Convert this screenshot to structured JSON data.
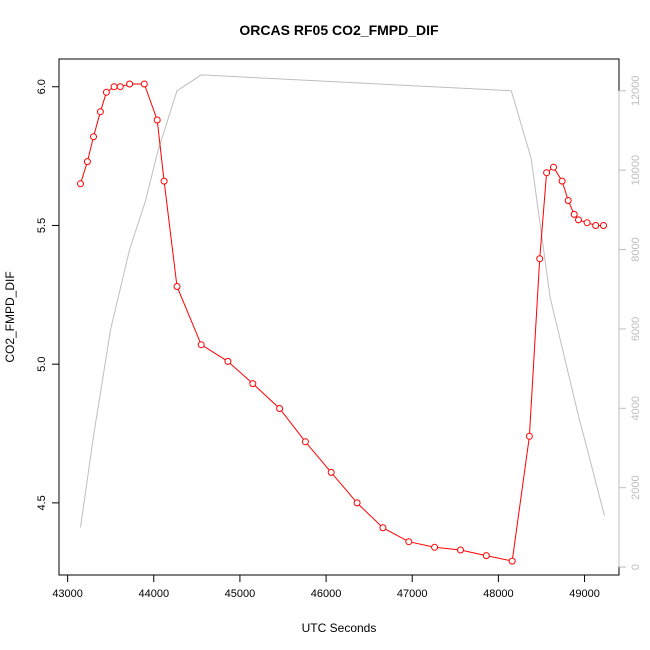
{
  "chart_data": {
    "type": "line",
    "title": "ORCAS RF05 CO2_FMPD_DIF",
    "xlabel": "UTC Seconds",
    "ylabel": "CO2_FMPD_DIF",
    "xlim": [
      42900,
      49400
    ],
    "ylim": [
      4.24,
      6.1
    ],
    "y2lim": [
      -200,
      12800
    ],
    "x_ticks": [
      43000,
      44000,
      45000,
      46000,
      47000,
      48000,
      49000
    ],
    "y_ticks": [
      4.5,
      5.0,
      5.5,
      6.0
    ],
    "y2_ticks": [
      0,
      2000,
      4000,
      6000,
      8000,
      10000,
      12000
    ],
    "grid": false,
    "series": [
      {
        "color": "#ff0000",
        "marker": "open-circle",
        "x": [
          43150,
          43230,
          43300,
          43380,
          43450,
          43540,
          43610,
          43720,
          43890,
          44040,
          44120,
          44270,
          44550,
          44860,
          45150,
          45460,
          45760,
          46060,
          46360,
          46660,
          46960,
          47260,
          47560,
          47860,
          48160,
          48360,
          48480,
          48560,
          48640,
          48740,
          48810,
          48880,
          48930,
          49030,
          49130,
          49220
        ],
        "y": [
          5.65,
          5.73,
          5.82,
          5.91,
          5.98,
          6.0,
          6.0,
          6.01,
          6.01,
          5.88,
          5.66,
          5.28,
          5.07,
          5.01,
          4.93,
          4.84,
          4.72,
          4.61,
          4.5,
          4.41,
          4.36,
          4.34,
          4.33,
          4.31,
          4.29,
          4.74,
          5.38,
          5.69,
          5.71,
          5.66,
          5.59,
          5.54,
          5.52,
          5.51,
          5.5,
          5.5
        ]
      },
      {
        "color": "#bebebe",
        "axis": "right",
        "x": [
          43150,
          43300,
          43500,
          43720,
          43900,
          44050,
          44270,
          44550,
          48150,
          48380,
          48600,
          48920,
          49230
        ],
        "y": [
          1000,
          3300,
          6000,
          8000,
          9200,
          10500,
          12000,
          12400,
          12000,
          10300,
          6800,
          3900,
          1300
        ]
      }
    ]
  }
}
